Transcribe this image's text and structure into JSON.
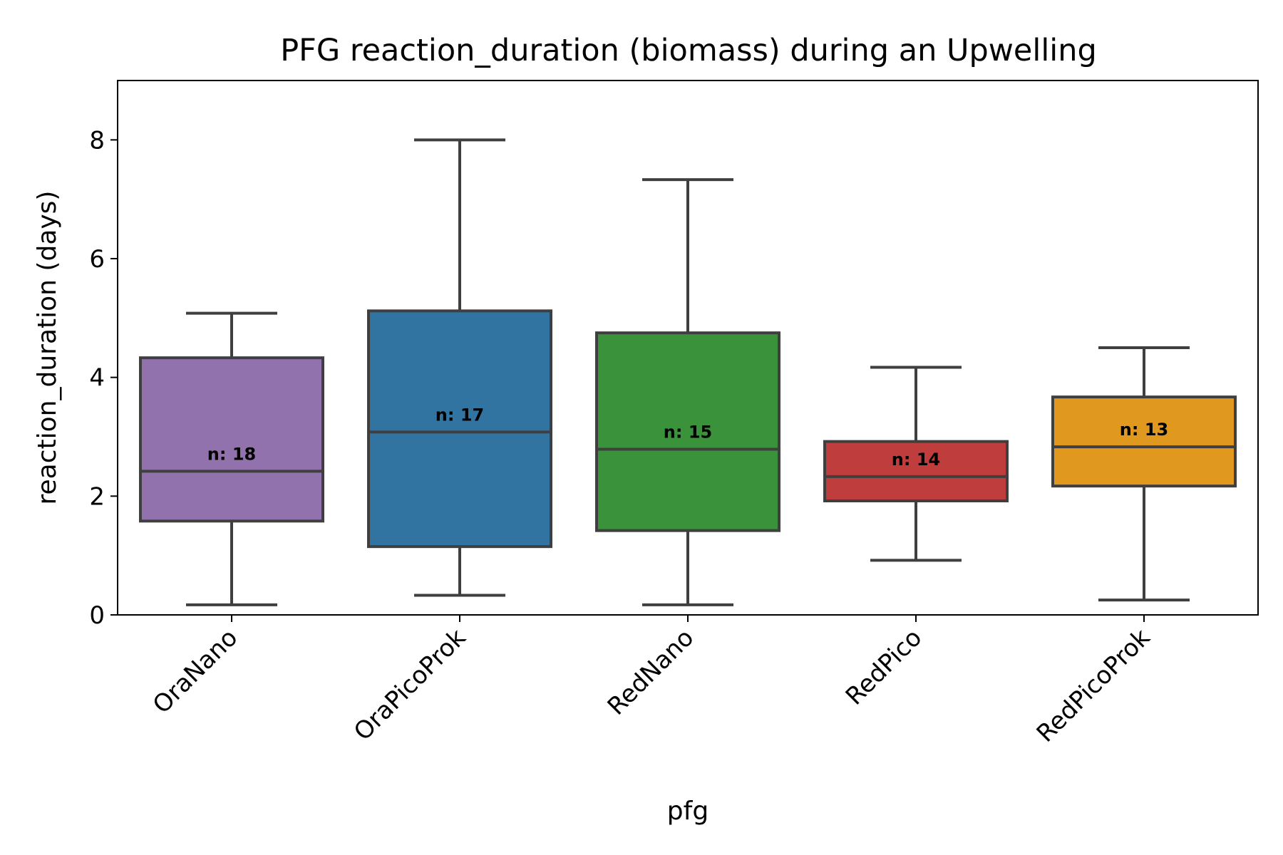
{
  "chart_data": {
    "type": "box",
    "title": "PFG reaction_duration (biomass) during an Upwelling",
    "xlabel": "pfg",
    "ylabel": "reaction_duration (days)",
    "ylim": [
      0,
      9
    ],
    "yticks": [
      0,
      2,
      4,
      6,
      8
    ],
    "grid": false,
    "categories": [
      "OraNano",
      "OraPicoProk",
      "RedNano",
      "RedPico",
      "RedPicoProk"
    ],
    "boxes": [
      {
        "category": "OraNano",
        "whisker_low": 0.17,
        "q1": 1.58,
        "median": 2.42,
        "q3": 4.33,
        "whisker_high": 5.08,
        "n_label": "n: 18",
        "color": "#9172ad"
      },
      {
        "category": "OraPicoProk",
        "whisker_low": 0.33,
        "q1": 1.15,
        "median": 3.08,
        "q3": 5.12,
        "whisker_high": 8.0,
        "n_label": "n: 17",
        "color": "#3274a1"
      },
      {
        "category": "RedNano",
        "whisker_low": 0.17,
        "q1": 1.42,
        "median": 2.79,
        "q3": 4.75,
        "whisker_high": 7.33,
        "n_label": "n: 15",
        "color": "#3a923a"
      },
      {
        "category": "RedPico",
        "whisker_low": 0.92,
        "q1": 1.92,
        "median": 2.33,
        "q3": 2.92,
        "whisker_high": 4.17,
        "n_label": "n: 14",
        "color": "#c03d3e"
      },
      {
        "category": "RedPicoProk",
        "whisker_low": 0.25,
        "q1": 2.17,
        "median": 2.83,
        "q3": 3.67,
        "whisker_high": 4.5,
        "n_label": "n: 13",
        "color": "#e1981f"
      }
    ],
    "line_color": "#3f3f3f"
  }
}
